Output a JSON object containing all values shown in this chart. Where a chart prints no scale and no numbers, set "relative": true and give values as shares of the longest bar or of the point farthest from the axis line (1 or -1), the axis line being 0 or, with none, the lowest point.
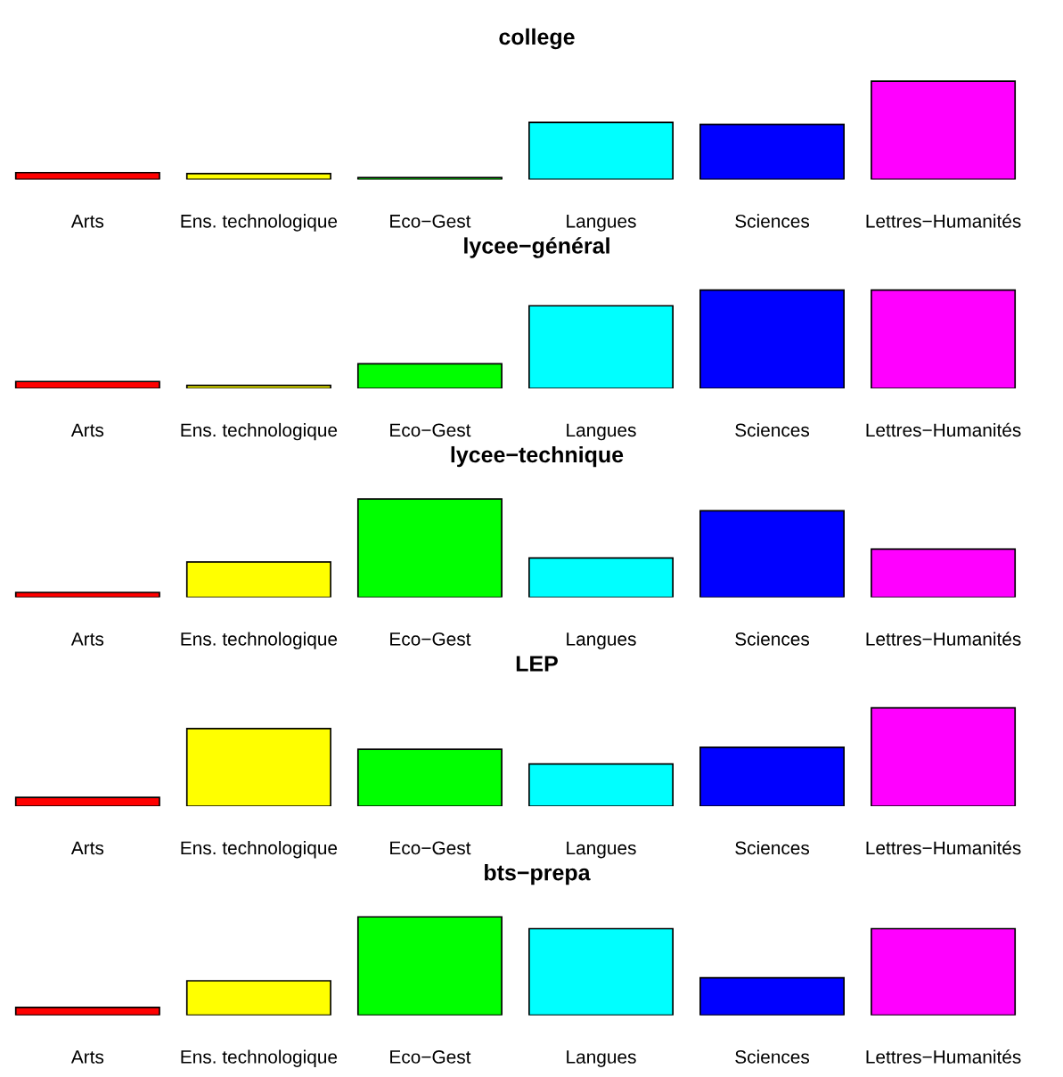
{
  "chart_data": [
    {
      "type": "bar",
      "title": "college",
      "relative": true,
      "categories": [
        "Arts",
        "Ens. technologique",
        "Eco−Gest",
        "Langues",
        "Sciences",
        "Lettres−Humanités"
      ],
      "colors": [
        "#ff0000",
        "#ffff00",
        "#00ff00",
        "#00ffff",
        "#0000ff",
        "#ff00ff"
      ],
      "values": [
        0.07,
        0.06,
        0.02,
        0.58,
        0.56,
        1
      ]
    },
    {
      "type": "bar",
      "title": "lycee−général",
      "relative": true,
      "categories": [
        "Arts",
        "Ens. technologique",
        "Eco−Gest",
        "Langues",
        "Sciences",
        "Lettres−Humanités"
      ],
      "colors": [
        "#ff0000",
        "#ffff00",
        "#00ff00",
        "#00ffff",
        "#0000ff",
        "#ff00ff"
      ],
      "values": [
        0.07,
        0.03,
        0.25,
        0.84,
        1,
        1
      ]
    },
    {
      "type": "bar",
      "title": "lycee−technique",
      "relative": true,
      "categories": [
        "Arts",
        "Ens. technologique",
        "Eco−Gest",
        "Langues",
        "Sciences",
        "Lettres−Humanités"
      ],
      "colors": [
        "#ff0000",
        "#ffff00",
        "#00ff00",
        "#00ffff",
        "#0000ff",
        "#ff00ff"
      ],
      "values": [
        0.05,
        0.36,
        1,
        0.4,
        0.88,
        0.49
      ]
    },
    {
      "type": "bar",
      "title": "LEP",
      "relative": true,
      "categories": [
        "Arts",
        "Ens. technologique",
        "Eco−Gest",
        "Langues",
        "Sciences",
        "Lettres−Humanités"
      ],
      "colors": [
        "#ff0000",
        "#ffff00",
        "#00ff00",
        "#00ffff",
        "#0000ff",
        "#ff00ff"
      ],
      "values": [
        0.09,
        0.79,
        0.58,
        0.43,
        0.6,
        1
      ]
    },
    {
      "type": "bar",
      "title": "bts−prepa",
      "relative": true,
      "categories": [
        "Arts",
        "Ens. technologique",
        "Eco−Gest",
        "Langues",
        "Sciences",
        "Lettres−Humanités"
      ],
      "colors": [
        "#ff0000",
        "#ffff00",
        "#00ff00",
        "#00ffff",
        "#0000ff",
        "#ff00ff"
      ],
      "values": [
        0.08,
        0.35,
        1,
        0.88,
        0.38,
        0.88
      ]
    }
  ]
}
